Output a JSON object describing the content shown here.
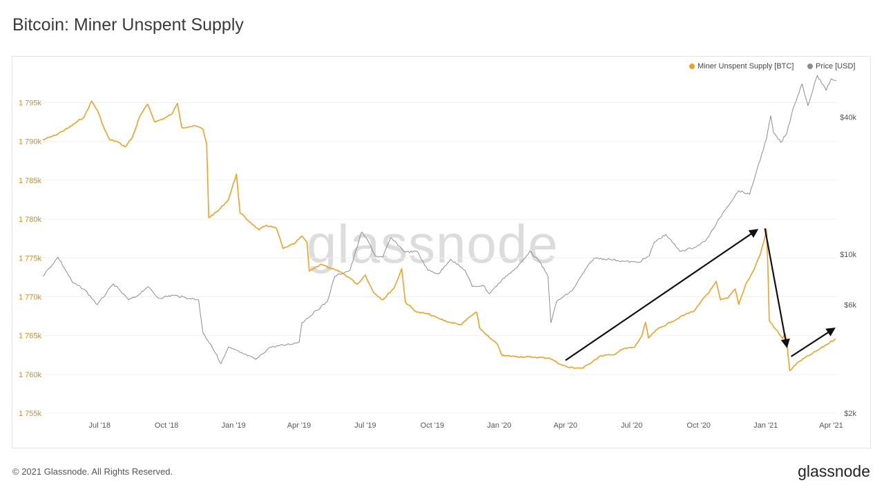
{
  "title": "Bitcoin: Miner Unspent Supply",
  "watermark": "glassnode",
  "footer": {
    "copyright": "© 2021 Glassnode. All Rights Reserved.",
    "logo": "glassnode"
  },
  "colors": {
    "supply": "#f2a01f",
    "price": "#8c8c8c",
    "left_axis_text": "#d98a1a",
    "grid": "#f0f0f0",
    "arrow": "#111111"
  },
  "chart_data": {
    "type": "line",
    "legend": [
      {
        "key": "supply",
        "label": "Miner Unspent Supply [BTC]",
        "color": "#f2a01f"
      },
      {
        "key": "price",
        "label": "Price [USD]",
        "color": "#8c8c8c"
      }
    ],
    "legend_position": "top-right",
    "grid": "horizontal",
    "x_range": [
      "2018-04-14",
      "2021-04-10"
    ],
    "x_ticks": [
      {
        "date": "2018-07-01",
        "label": "Jul '18"
      },
      {
        "date": "2018-10-01",
        "label": "Oct '18"
      },
      {
        "date": "2019-01-01",
        "label": "Jan '19"
      },
      {
        "date": "2019-04-01",
        "label": "Apr '19"
      },
      {
        "date": "2019-07-01",
        "label": "Jul '19"
      },
      {
        "date": "2019-10-01",
        "label": "Oct '19"
      },
      {
        "date": "2020-01-01",
        "label": "Jan '20"
      },
      {
        "date": "2020-04-01",
        "label": "Apr '20"
      },
      {
        "date": "2020-07-01",
        "label": "Jul '20"
      },
      {
        "date": "2020-10-01",
        "label": "Oct '20"
      },
      {
        "date": "2021-01-01",
        "label": "Jan '21"
      },
      {
        "date": "2021-04-01",
        "label": "Apr '21"
      }
    ],
    "y_left": {
      "unit": "BTC",
      "range": [
        1755000,
        1799500
      ],
      "ticks": [
        {
          "value": 1755000,
          "label": "1 755k"
        },
        {
          "value": 1760000,
          "label": "1 760k"
        },
        {
          "value": 1765000,
          "label": "1 765k"
        },
        {
          "value": 1770000,
          "label": "1 770k"
        },
        {
          "value": 1775000,
          "label": "1 775k"
        },
        {
          "value": 1780000,
          "label": "1 780k"
        },
        {
          "value": 1785000,
          "label": "1 785k"
        },
        {
          "value": 1790000,
          "label": "1 790k"
        },
        {
          "value": 1795000,
          "label": "1 795k"
        }
      ]
    },
    "y_right": {
      "unit": "USD",
      "scale": "log",
      "range": [
        2000,
        66000
      ],
      "ticks": [
        {
          "value": 2000,
          "label": "$2k"
        },
        {
          "value": 6000,
          "label": "$6k"
        },
        {
          "value": 10000,
          "label": "$10k"
        },
        {
          "value": 40000,
          "label": "$40k"
        }
      ]
    },
    "series": [
      {
        "name": "Miner Unspent Supply [BTC]",
        "key": "supply",
        "axis": "left",
        "points": [
          [
            "2018-04-14",
            1790200
          ],
          [
            "2018-05-01",
            1790800
          ],
          [
            "2018-05-20",
            1791800
          ],
          [
            "2018-06-10",
            1793200
          ],
          [
            "2018-06-20",
            1795200
          ],
          [
            "2018-06-28",
            1794000
          ],
          [
            "2018-07-08",
            1791500
          ],
          [
            "2018-07-15",
            1790200
          ],
          [
            "2018-07-25",
            1790000
          ],
          [
            "2018-08-05",
            1789300
          ],
          [
            "2018-08-15",
            1790500
          ],
          [
            "2018-08-25",
            1793200
          ],
          [
            "2018-09-05",
            1794800
          ],
          [
            "2018-09-15",
            1792500
          ],
          [
            "2018-09-28",
            1793000
          ],
          [
            "2018-10-08",
            1793500
          ],
          [
            "2018-10-16",
            1794900
          ],
          [
            "2018-10-22",
            1791800
          ],
          [
            "2018-11-01",
            1791900
          ],
          [
            "2018-11-10",
            1792000
          ],
          [
            "2018-11-20",
            1791600
          ],
          [
            "2018-11-25",
            1789700
          ],
          [
            "2018-11-28",
            1780200
          ],
          [
            "2018-12-10",
            1781000
          ],
          [
            "2018-12-25",
            1782500
          ],
          [
            "2019-01-05",
            1785800
          ],
          [
            "2019-01-10",
            1780800
          ],
          [
            "2019-01-25",
            1779500
          ],
          [
            "2019-02-05",
            1778600
          ],
          [
            "2019-02-15",
            1779200
          ],
          [
            "2019-03-01",
            1778800
          ],
          [
            "2019-03-10",
            1776200
          ],
          [
            "2019-03-25",
            1776800
          ],
          [
            "2019-04-05",
            1777800
          ],
          [
            "2019-04-12",
            1777000
          ],
          [
            "2019-04-15",
            1773300
          ],
          [
            "2019-05-01",
            1774200
          ],
          [
            "2019-05-15",
            1773600
          ],
          [
            "2019-05-28",
            1773200
          ],
          [
            "2019-06-10",
            1772400
          ],
          [
            "2019-06-20",
            1771600
          ],
          [
            "2019-07-01",
            1772800
          ],
          [
            "2019-07-12",
            1770600
          ],
          [
            "2019-07-25",
            1769600
          ],
          [
            "2019-08-10",
            1771200
          ],
          [
            "2019-08-20",
            1773600
          ],
          [
            "2019-08-25",
            1769300
          ],
          [
            "2019-09-10",
            1768000
          ],
          [
            "2019-09-25",
            1767800
          ],
          [
            "2019-10-10",
            1767200
          ],
          [
            "2019-10-25",
            1766700
          ],
          [
            "2019-11-10",
            1766400
          ],
          [
            "2019-11-20",
            1767300
          ],
          [
            "2019-12-01",
            1768000
          ],
          [
            "2019-12-05",
            1766000
          ],
          [
            "2019-12-20",
            1764600
          ],
          [
            "2019-12-30",
            1763800
          ],
          [
            "2020-01-05",
            1762400
          ],
          [
            "2020-01-25",
            1762300
          ],
          [
            "2020-02-20",
            1762200
          ],
          [
            "2020-03-10",
            1762100
          ],
          [
            "2020-03-25",
            1761300
          ],
          [
            "2020-04-05",
            1760900
          ],
          [
            "2020-04-25",
            1760800
          ],
          [
            "2020-05-10",
            1761800
          ],
          [
            "2020-05-20",
            1762400
          ],
          [
            "2020-06-05",
            1762500
          ],
          [
            "2020-06-20",
            1763300
          ],
          [
            "2020-07-05",
            1763500
          ],
          [
            "2020-07-15",
            1765000
          ],
          [
            "2020-07-20",
            1766700
          ],
          [
            "2020-07-24",
            1764700
          ],
          [
            "2020-08-05",
            1765800
          ],
          [
            "2020-08-25",
            1766800
          ],
          [
            "2020-09-10",
            1767600
          ],
          [
            "2020-09-25",
            1768200
          ],
          [
            "2020-10-05",
            1769500
          ],
          [
            "2020-10-15",
            1770500
          ],
          [
            "2020-10-25",
            1772000
          ],
          [
            "2020-10-31",
            1769600
          ],
          [
            "2020-11-10",
            1769800
          ],
          [
            "2020-11-20",
            1771000
          ],
          [
            "2020-11-25",
            1769000
          ],
          [
            "2020-12-05",
            1771700
          ],
          [
            "2020-12-15",
            1773300
          ],
          [
            "2020-12-25",
            1775600
          ],
          [
            "2020-12-31",
            1777700
          ],
          [
            "2021-01-02",
            1778700
          ],
          [
            "2021-01-04",
            1774000
          ],
          [
            "2021-01-06",
            1766900
          ],
          [
            "2021-01-15",
            1765800
          ],
          [
            "2021-01-24",
            1764600
          ],
          [
            "2021-01-28",
            1765200
          ],
          [
            "2021-01-31",
            1763200
          ],
          [
            "2021-02-03",
            1760500
          ],
          [
            "2021-02-15",
            1761600
          ],
          [
            "2021-03-01",
            1762400
          ],
          [
            "2021-03-15",
            1763200
          ],
          [
            "2021-03-25",
            1763800
          ],
          [
            "2021-04-07",
            1764600
          ]
        ]
      },
      {
        "name": "Price [USD]",
        "key": "price",
        "axis": "right",
        "points": [
          [
            "2018-04-14",
            8000
          ],
          [
            "2018-05-05",
            9700
          ],
          [
            "2018-05-25",
            7500
          ],
          [
            "2018-06-10",
            7000
          ],
          [
            "2018-06-28",
            6000
          ],
          [
            "2018-07-20",
            7400
          ],
          [
            "2018-08-10",
            6300
          ],
          [
            "2018-08-20",
            6500
          ],
          [
            "2018-09-05",
            7200
          ],
          [
            "2018-09-20",
            6400
          ],
          [
            "2018-10-10",
            6600
          ],
          [
            "2018-11-01",
            6400
          ],
          [
            "2018-11-14",
            6300
          ],
          [
            "2018-11-20",
            4500
          ],
          [
            "2018-12-01",
            4000
          ],
          [
            "2018-12-15",
            3300
          ],
          [
            "2018-12-25",
            3900
          ],
          [
            "2019-01-10",
            3700
          ],
          [
            "2019-02-01",
            3450
          ],
          [
            "2019-02-20",
            3900
          ],
          [
            "2019-03-15",
            4000
          ],
          [
            "2019-04-01",
            4100
          ],
          [
            "2019-04-05",
            5000
          ],
          [
            "2019-05-10",
            6200
          ],
          [
            "2019-05-20",
            8000
          ],
          [
            "2019-06-10",
            8500
          ],
          [
            "2019-06-26",
            12500
          ],
          [
            "2019-07-05",
            11400
          ],
          [
            "2019-07-15",
            9800
          ],
          [
            "2019-07-25",
            9700
          ],
          [
            "2019-08-05",
            11800
          ],
          [
            "2019-08-25",
            10200
          ],
          [
            "2019-09-10",
            10300
          ],
          [
            "2019-09-25",
            8500
          ],
          [
            "2019-10-10",
            8200
          ],
          [
            "2019-10-26",
            9500
          ],
          [
            "2019-11-15",
            8500
          ],
          [
            "2019-11-25",
            7200
          ],
          [
            "2019-12-10",
            7300
          ],
          [
            "2019-12-18",
            6700
          ],
          [
            "2020-01-10",
            8000
          ],
          [
            "2020-01-25",
            8700
          ],
          [
            "2020-02-12",
            10300
          ],
          [
            "2020-02-25",
            9300
          ],
          [
            "2020-03-08",
            8000
          ],
          [
            "2020-03-12",
            5000
          ],
          [
            "2020-03-20",
            6200
          ],
          [
            "2020-04-10",
            6900
          ],
          [
            "2020-04-30",
            8700
          ],
          [
            "2020-05-10",
            9600
          ],
          [
            "2020-06-01",
            9500
          ],
          [
            "2020-06-20",
            9300
          ],
          [
            "2020-07-10",
            9200
          ],
          [
            "2020-07-25",
            9800
          ],
          [
            "2020-08-01",
            11300
          ],
          [
            "2020-08-17",
            12200
          ],
          [
            "2020-09-05",
            10300
          ],
          [
            "2020-09-25",
            10700
          ],
          [
            "2020-10-10",
            11400
          ],
          [
            "2020-10-21",
            12900
          ],
          [
            "2020-11-05",
            15500
          ],
          [
            "2020-11-25",
            19000
          ],
          [
            "2020-12-10",
            18300
          ],
          [
            "2020-12-20",
            23500
          ],
          [
            "2021-01-02",
            32000
          ],
          [
            "2021-01-08",
            40500
          ],
          [
            "2021-01-12",
            34000
          ],
          [
            "2021-01-22",
            31000
          ],
          [
            "2021-01-30",
            34000
          ],
          [
            "2021-02-08",
            44000
          ],
          [
            "2021-02-20",
            56000
          ],
          [
            "2021-02-28",
            45000
          ],
          [
            "2021-03-13",
            61000
          ],
          [
            "2021-03-25",
            52500
          ],
          [
            "2021-04-01",
            59000
          ],
          [
            "2021-04-08",
            58000
          ]
        ]
      }
    ],
    "annotations": [
      {
        "type": "arrow",
        "from": [
          "2020-04-01",
          1761800
        ],
        "to": [
          "2020-12-20",
          1778600
        ]
      },
      {
        "type": "arrow",
        "from": [
          "2020-12-31",
          1778800
        ],
        "to": [
          "2021-01-30",
          1763600
        ]
      },
      {
        "type": "arrow",
        "from": [
          "2021-02-05",
          1762300
        ],
        "to": [
          "2021-04-05",
          1765900
        ]
      }
    ]
  }
}
